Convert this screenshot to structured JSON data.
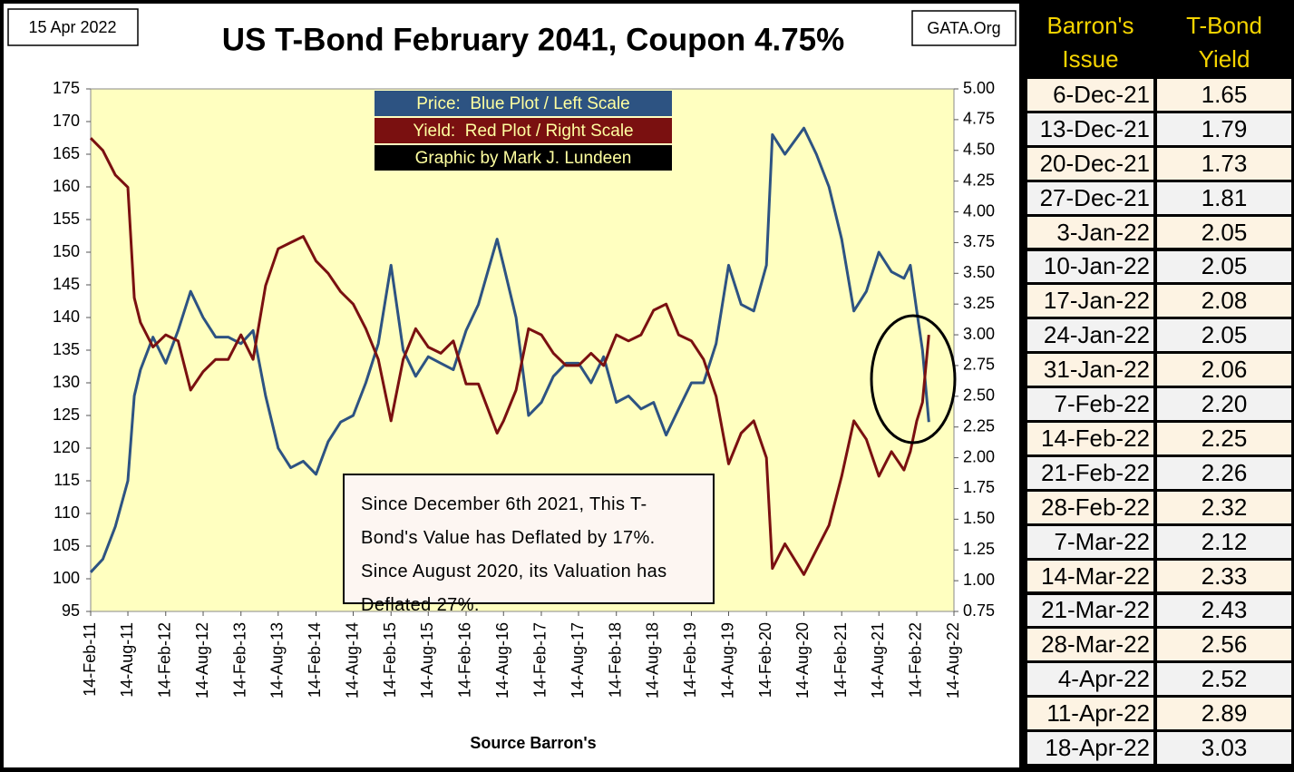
{
  "header": {
    "date": "15 Apr 2022",
    "site": "GATA.Org"
  },
  "chart_data": {
    "type": "line",
    "title": "US T-Bond February 2041, Coupon 4.75%",
    "xlabel": "Source Barron's",
    "credit": "Graphic by Mark J. Lundeen",
    "annotation": "Since December 6th 2021, This T-Bond's Value has Deflated by 17%. Since August 2020, its Valuation has Deflated 27%.",
    "x": [
      "2011-02-14",
      "2011-04-14",
      "2011-06-14",
      "2011-08-14",
      "2011-09-14",
      "2011-10-14",
      "2011-12-14",
      "2012-02-14",
      "2012-04-14",
      "2012-06-14",
      "2012-08-14",
      "2012-10-14",
      "2012-12-14",
      "2013-02-14",
      "2013-04-14",
      "2013-06-14",
      "2013-08-14",
      "2013-10-14",
      "2013-12-14",
      "2014-02-14",
      "2014-04-14",
      "2014-06-14",
      "2014-08-14",
      "2014-10-14",
      "2014-12-14",
      "2015-02-14",
      "2015-04-14",
      "2015-06-14",
      "2015-08-14",
      "2015-10-14",
      "2015-12-14",
      "2016-02-14",
      "2016-04-14",
      "2016-07-14",
      "2016-08-14",
      "2016-10-14",
      "2016-12-14",
      "2017-02-14",
      "2017-04-14",
      "2017-06-14",
      "2017-08-14",
      "2017-10-14",
      "2017-12-14",
      "2018-02-14",
      "2018-04-14",
      "2018-06-14",
      "2018-08-14",
      "2018-10-14",
      "2018-12-14",
      "2019-02-14",
      "2019-04-14",
      "2019-06-14",
      "2019-08-14",
      "2019-10-14",
      "2019-12-14",
      "2020-02-14",
      "2020-03-14",
      "2020-05-14",
      "2020-08-14",
      "2020-10-14",
      "2020-12-14",
      "2021-02-14",
      "2021-04-14",
      "2021-06-14",
      "2021-08-14",
      "2021-10-14",
      "2021-12-14",
      "2022-01-14",
      "2022-02-14",
      "2022-03-14",
      "2022-04-14"
    ],
    "series": [
      {
        "name": "Price:  Blue Plot / Left Scale",
        "color": "#2d5382",
        "values": [
          101,
          103,
          108,
          115,
          128,
          132,
          137,
          133,
          138,
          144,
          140,
          137,
          137,
          136,
          138,
          128,
          120,
          117,
          118,
          116,
          121,
          124,
          125,
          130,
          136,
          148,
          135,
          131,
          134,
          133,
          132,
          138,
          142,
          152,
          148,
          140,
          125,
          127,
          131,
          133,
          133,
          130,
          134,
          127,
          128,
          126,
          127,
          122,
          126,
          130,
          130,
          136,
          148,
          142,
          141,
          148,
          168,
          165,
          169,
          165,
          160,
          152,
          141,
          144,
          150,
          147,
          146,
          148,
          141,
          135,
          124
        ]
      },
      {
        "name": "Yield:  Red Plot / Right Scale",
        "color": "#7a1010",
        "axis": "y2",
        "values": [
          4.6,
          4.5,
          4.3,
          4.2,
          3.3,
          3.1,
          2.9,
          3.0,
          2.95,
          2.55,
          2.7,
          2.8,
          2.8,
          3.0,
          2.8,
          3.4,
          3.7,
          3.75,
          3.8,
          3.6,
          3.5,
          3.35,
          3.25,
          3.05,
          2.8,
          2.3,
          2.8,
          3.05,
          2.9,
          2.85,
          2.95,
          2.6,
          2.6,
          2.2,
          2.3,
          2.55,
          3.05,
          3.0,
          2.85,
          2.75,
          2.75,
          2.85,
          2.75,
          3.0,
          2.95,
          3.0,
          3.2,
          3.25,
          3.0,
          2.95,
          2.8,
          2.5,
          1.95,
          2.2,
          2.3,
          2.0,
          1.1,
          1.3,
          1.05,
          1.25,
          1.45,
          1.85,
          2.3,
          2.15,
          1.85,
          2.05,
          1.9,
          2.05,
          2.3,
          2.45,
          3.0
        ]
      }
    ],
    "xlim": [
      "2011-02-14",
      "2022-08-14"
    ],
    "xticks": [
      {
        "value": "2011-02-14",
        "label": "14-Feb-11"
      },
      {
        "value": "2011-08-14",
        "label": "14-Aug-11"
      },
      {
        "value": "2012-02-14",
        "label": "14-Feb-12"
      },
      {
        "value": "2012-08-14",
        "label": "14-Aug-12"
      },
      {
        "value": "2013-02-14",
        "label": "14-Feb-13"
      },
      {
        "value": "2013-08-14",
        "label": "14-Aug-13"
      },
      {
        "value": "2014-02-14",
        "label": "14-Feb-14"
      },
      {
        "value": "2014-08-14",
        "label": "14-Aug-14"
      },
      {
        "value": "2015-02-14",
        "label": "14-Feb-15"
      },
      {
        "value": "2015-08-14",
        "label": "14-Aug-15"
      },
      {
        "value": "2016-02-14",
        "label": "14-Feb-16"
      },
      {
        "value": "2016-08-14",
        "label": "14-Aug-16"
      },
      {
        "value": "2017-02-14",
        "label": "14-Feb-17"
      },
      {
        "value": "2017-08-14",
        "label": "14-Aug-17"
      },
      {
        "value": "2018-02-14",
        "label": "14-Feb-18"
      },
      {
        "value": "2018-08-14",
        "label": "14-Aug-18"
      },
      {
        "value": "2019-02-14",
        "label": "14-Feb-19"
      },
      {
        "value": "2019-08-14",
        "label": "14-Aug-19"
      },
      {
        "value": "2020-02-14",
        "label": "14-Feb-20"
      },
      {
        "value": "2020-08-14",
        "label": "14-Aug-20"
      },
      {
        "value": "2021-02-14",
        "label": "14-Feb-21"
      },
      {
        "value": "2021-08-14",
        "label": "14-Aug-21"
      },
      {
        "value": "2022-02-14",
        "label": "14-Feb-22"
      },
      {
        "value": "2022-08-14",
        "label": "14-Aug-22"
      }
    ],
    "ylim": [
      95,
      175
    ],
    "yticks": [
      95,
      100,
      105,
      110,
      115,
      120,
      125,
      130,
      135,
      140,
      145,
      150,
      155,
      160,
      165,
      170,
      175
    ],
    "y2lim": [
      0.75,
      5
    ],
    "y2ticks": [
      0.75,
      {
        "value": 1,
        "label": "1.00"
      },
      1.25,
      {
        "value": 1.5,
        "label": "1.50"
      },
      1.75,
      {
        "value": 2,
        "label": "2.00"
      },
      2.25,
      {
        "value": 2.5,
        "label": "2.50"
      },
      2.75,
      {
        "value": 3,
        "label": "3.00"
      },
      3.25,
      {
        "value": 3.5,
        "label": "3.50"
      },
      3.75,
      {
        "value": 4,
        "label": "4.00"
      },
      4.25,
      {
        "value": 4.5,
        "label": "4.50"
      },
      4.75,
      {
        "value": 5,
        "label": "5.00"
      }
    ]
  },
  "table": {
    "header": [
      "Barron's Issue",
      "T-Bond Yield"
    ],
    "rows": [
      [
        "6-Dec-21",
        "1.65"
      ],
      [
        "13-Dec-21",
        "1.79"
      ],
      [
        "20-Dec-21",
        "1.73"
      ],
      [
        "27-Dec-21",
        "1.81"
      ],
      [
        "3-Jan-22",
        "2.05"
      ],
      [
        "10-Jan-22",
        "2.05"
      ],
      [
        "17-Jan-22",
        "2.08"
      ],
      [
        "24-Jan-22",
        "2.05"
      ],
      [
        "31-Jan-22",
        "2.06"
      ],
      [
        "7-Feb-22",
        "2.20"
      ],
      [
        "14-Feb-22",
        "2.25"
      ],
      [
        "21-Feb-22",
        "2.26"
      ],
      [
        "28-Feb-22",
        "2.32"
      ],
      [
        "7-Mar-22",
        "2.12"
      ],
      [
        "14-Mar-22",
        "2.33"
      ],
      [
        "21-Mar-22",
        "2.43"
      ],
      [
        "28-Mar-22",
        "2.56"
      ],
      [
        "4-Apr-22",
        "2.52"
      ],
      [
        "11-Apr-22",
        "2.89"
      ],
      [
        "18-Apr-22",
        "3.03"
      ]
    ]
  }
}
